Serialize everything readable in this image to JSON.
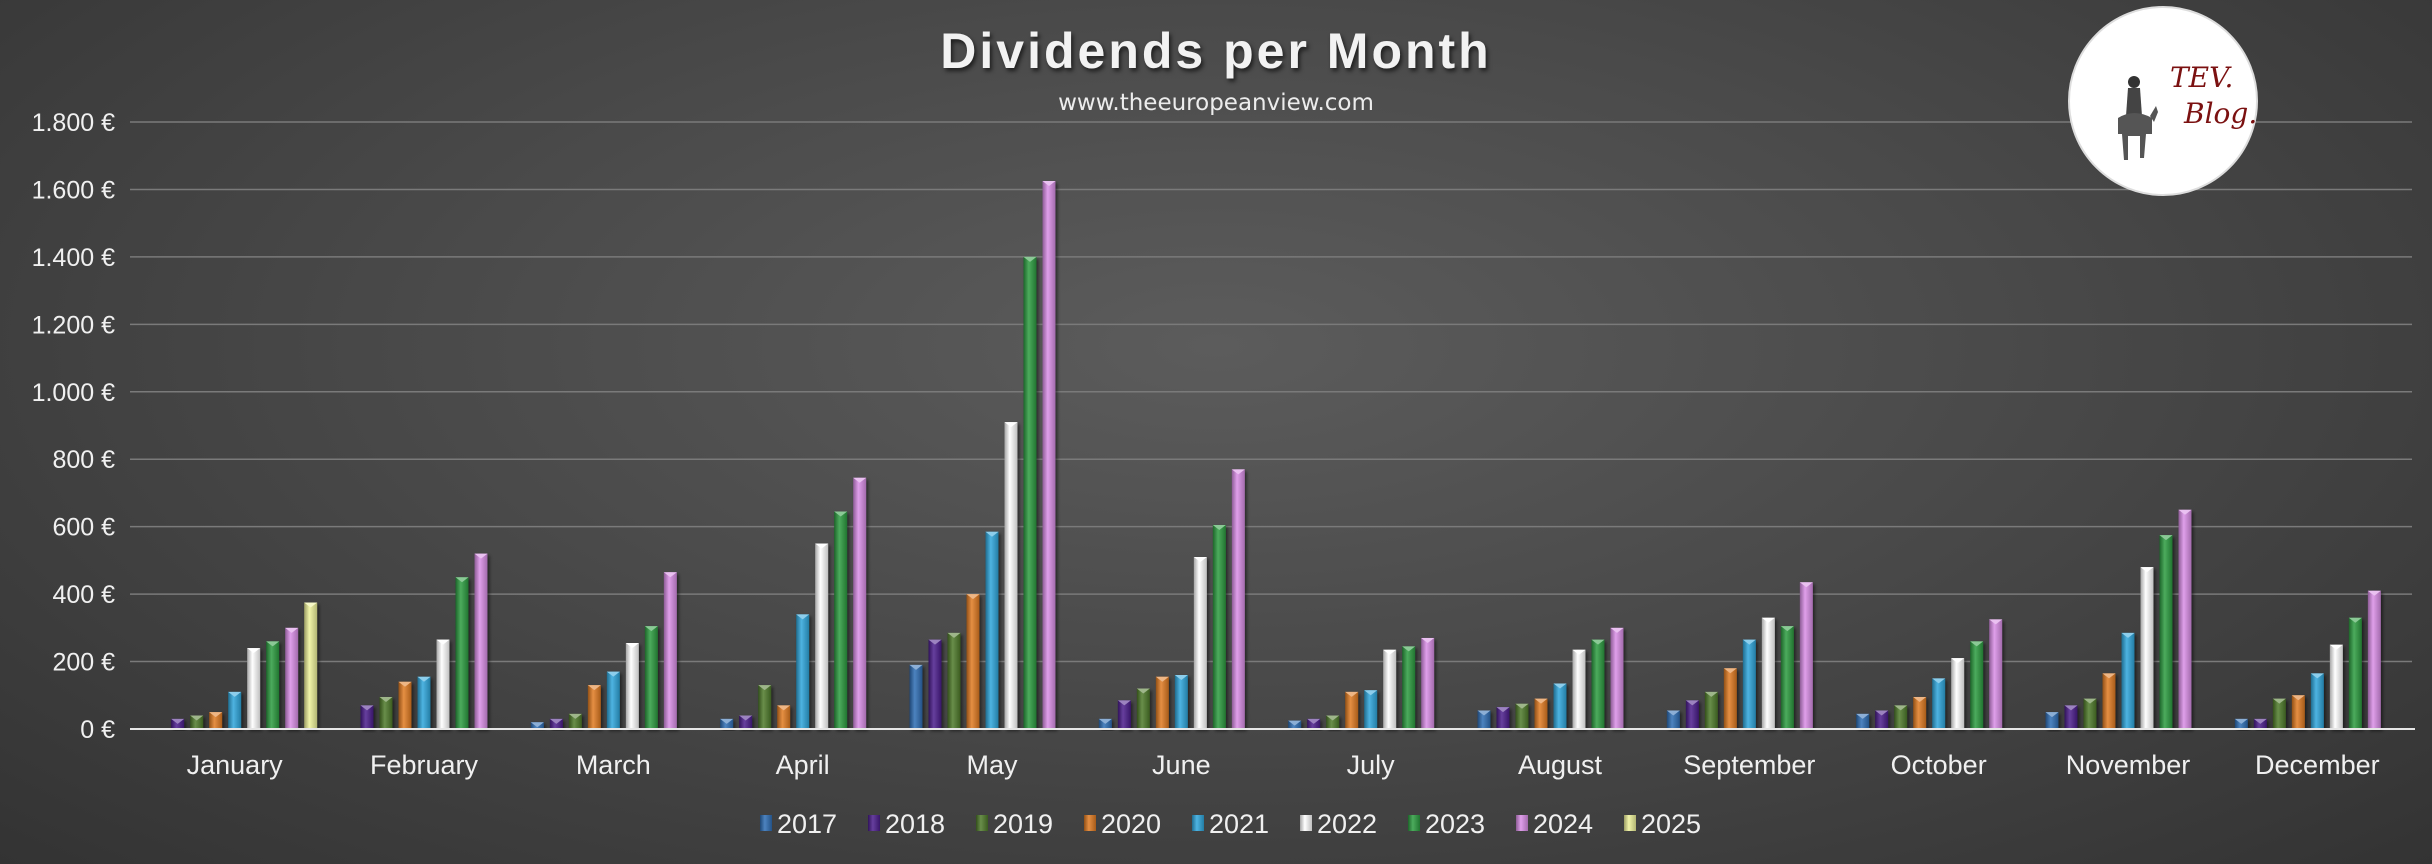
{
  "chart_data": {
    "type": "bar",
    "title": "Dividends per Month",
    "subtitle": "www.theeuropeanview.com",
    "xlabel": "",
    "ylabel": "",
    "ylim": [
      0,
      1800
    ],
    "yticks": [
      0,
      200,
      400,
      600,
      800,
      1000,
      1200,
      1400,
      1600,
      1800
    ],
    "ytick_labels": [
      "0 €",
      "200 €",
      "400 €",
      "600 €",
      "800 €",
      "1.000 €",
      "1.200 €",
      "1.400 €",
      "1.600 €",
      "1.800 €"
    ],
    "grid": true,
    "legend_position": "bottom",
    "categories": [
      "January",
      "February",
      "March",
      "April",
      "May",
      "June",
      "July",
      "August",
      "September",
      "October",
      "November",
      "December"
    ],
    "series": [
      {
        "name": "2017",
        "color": "#2e6db4",
        "values": [
          0,
          0,
          20,
          30,
          190,
          30,
          25,
          55,
          55,
          45,
          50,
          30
        ]
      },
      {
        "name": "2018",
        "color": "#4b1d8c",
        "values": [
          30,
          70,
          30,
          40,
          265,
          85,
          30,
          65,
          85,
          55,
          70,
          30
        ]
      },
      {
        "name": "2019",
        "color": "#4f7a2a",
        "values": [
          40,
          95,
          45,
          130,
          285,
          120,
          40,
          75,
          110,
          70,
          90,
          90
        ]
      },
      {
        "name": "2020",
        "color": "#e07b22",
        "values": [
          50,
          140,
          130,
          70,
          400,
          155,
          110,
          90,
          180,
          95,
          165,
          100
        ]
      },
      {
        "name": "2021",
        "color": "#2fa6dc",
        "values": [
          110,
          155,
          170,
          340,
          585,
          160,
          115,
          135,
          265,
          150,
          285,
          165
        ]
      },
      {
        "name": "2022",
        "color": "#ffffff",
        "values": [
          240,
          265,
          255,
          550,
          910,
          510,
          235,
          235,
          330,
          210,
          480,
          250
        ]
      },
      {
        "name": "2023",
        "color": "#2c9c40",
        "values": [
          260,
          450,
          305,
          645,
          1400,
          605,
          245,
          265,
          305,
          260,
          575,
          330
        ]
      },
      {
        "name": "2024",
        "color": "#d98ee6",
        "values": [
          300,
          520,
          465,
          745,
          1625,
          770,
          270,
          300,
          435,
          325,
          650,
          410
        ]
      },
      {
        "name": "2025",
        "color": "#eef29a",
        "values": [
          375,
          null,
          null,
          null,
          null,
          null,
          null,
          null,
          null,
          null,
          null,
          null
        ]
      }
    ]
  },
  "logo": {
    "line1": "TEV.",
    "line2": "Blog."
  }
}
